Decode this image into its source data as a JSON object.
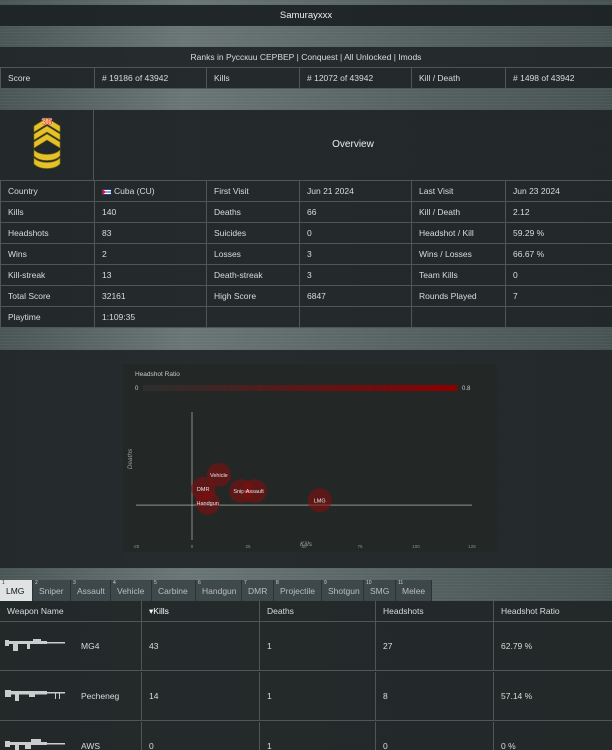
{
  "player": {
    "name": "Samurayxxx"
  },
  "ranks_line": "Ranks in Русскuu СЕРВЕР | Conquest | All Unlocked | Imods",
  "rank_row": [
    {
      "label": "Score",
      "value": "# 19186 of 43942"
    },
    {
      "label": "Kills",
      "value": "# 12072 of 43942"
    },
    {
      "label": "Kill / Death",
      "value": "# 1498 of 43942"
    }
  ],
  "rank_badge": {
    "level": "36",
    "icon": "sergeant-chevron-badge-icon",
    "color": "#e3c22a"
  },
  "overview_title": "Overview",
  "stats": {
    "country": {
      "label": "Country",
      "value": "Cuba (CU)",
      "flag": "cuba-flag-icon"
    },
    "first_visit": {
      "label": "First Visit",
      "value": "Jun 21 2024"
    },
    "last_visit": {
      "label": "Last Visit",
      "value": "Jun 23 2024"
    },
    "kills": {
      "label": "Kills",
      "value": "140"
    },
    "deaths": {
      "label": "Deaths",
      "value": "66"
    },
    "kill_death": {
      "label": "Kill / Death",
      "value": "2.12"
    },
    "headshots": {
      "label": "Headshots",
      "value": "83"
    },
    "suicides": {
      "label": "Suicides",
      "value": "0"
    },
    "headshot_kill": {
      "label": "Headshot / Kill",
      "value": "59.29 %"
    },
    "wins": {
      "label": "Wins",
      "value": "2"
    },
    "losses": {
      "label": "Losses",
      "value": "3"
    },
    "wins_losses": {
      "label": "Wins / Losses",
      "value": "66.67 %"
    },
    "kill_streak": {
      "label": "Kill-streak",
      "value": "13"
    },
    "death_streak": {
      "label": "Death-streak",
      "value": "3"
    },
    "team_kills": {
      "label": "Team Kills",
      "value": "0"
    },
    "total_score": {
      "label": "Total Score",
      "value": "32161"
    },
    "high_score": {
      "label": "High Score",
      "value": "6847"
    },
    "rounds_played": {
      "label": "Rounds Played",
      "value": "7"
    },
    "playtime": {
      "label": "Playtime",
      "value": "1:109:35"
    }
  },
  "chart_data": {
    "type": "scatter",
    "legend_title": "Headshot Ratio",
    "legend_min": "0",
    "legend_max": "0.8",
    "xlabel": "Kills",
    "ylabel": "Deaths",
    "xticks": [
      "-25",
      "0",
      "25",
      "50",
      "75",
      "100",
      "125"
    ],
    "xlim": [
      -25,
      125
    ],
    "ylim": [
      -15,
      40
    ],
    "color": "#8b0b0b",
    "points": [
      {
        "label": "Vehicle",
        "x": 12,
        "y": 13
      },
      {
        "label": "DMR",
        "x": 5,
        "y": 7
      },
      {
        "label": "Sniper",
        "x": 22,
        "y": 6
      },
      {
        "label": "Assault",
        "x": 28,
        "y": 6
      },
      {
        "label": "Handgun",
        "x": 7,
        "y": 1
      },
      {
        "label": "LMG",
        "x": 57,
        "y": 2
      }
    ]
  },
  "tabs": [
    {
      "num": "1",
      "label": "LMG",
      "active": true
    },
    {
      "num": "2",
      "label": "Sniper"
    },
    {
      "num": "3",
      "label": "Assault"
    },
    {
      "num": "4",
      "label": "Vehicle"
    },
    {
      "num": "5",
      "label": "Carbine"
    },
    {
      "num": "6",
      "label": "Handgun"
    },
    {
      "num": "7",
      "label": "DMR"
    },
    {
      "num": "8",
      "label": "Projectile"
    },
    {
      "num": "9",
      "label": "Shotgun"
    },
    {
      "num": "10",
      "label": "SMG"
    },
    {
      "num": "11",
      "label": "Melee"
    }
  ],
  "weapon_table": {
    "columns": [
      "Weapon Name",
      "Kills",
      "Deaths",
      "Headshots",
      "Headshot Ratio"
    ],
    "sort_indicator": "▾",
    "rows": [
      {
        "name": "MG4",
        "kills": "43",
        "deaths": "1",
        "headshots": "27",
        "ratio": "62.79 %",
        "icon": "mg4-gun-icon"
      },
      {
        "name": "Pecheneg",
        "kills": "14",
        "deaths": "1",
        "headshots": "8",
        "ratio": "57.14 %",
        "icon": "pecheneg-gun-icon"
      },
      {
        "name": "AWS",
        "kills": "0",
        "deaths": "1",
        "headshots": "0",
        "ratio": "0 %",
        "icon": "aws-gun-icon"
      }
    ]
  }
}
